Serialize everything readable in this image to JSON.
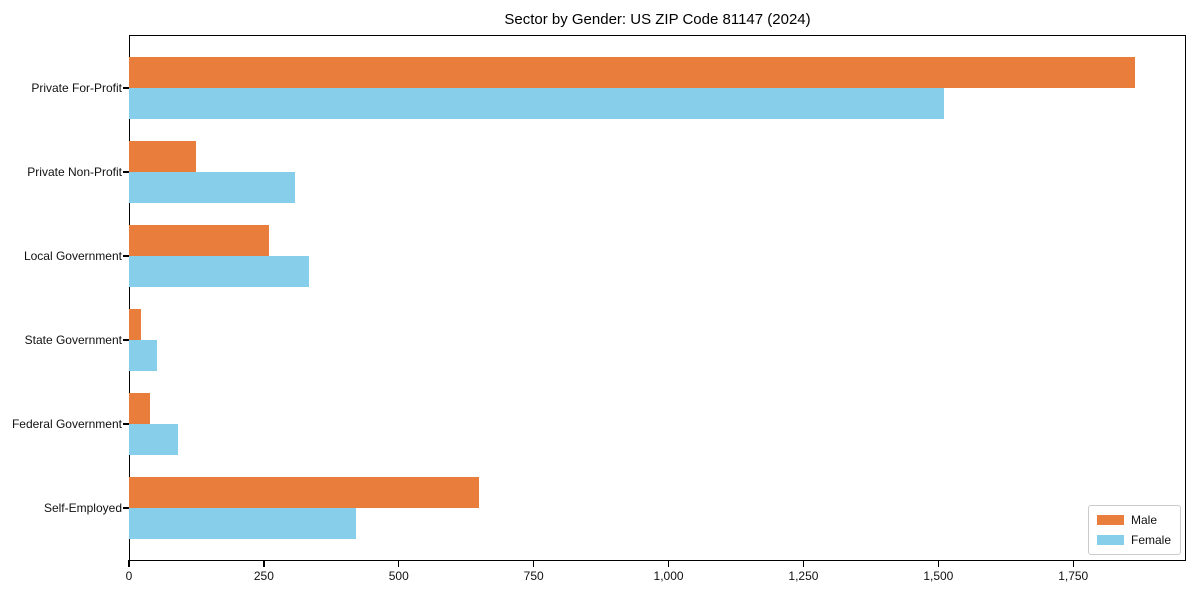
{
  "title": "Sector by Gender: US ZIP Code 81147 (2024)",
  "colors": {
    "male": "#e87d3c",
    "female": "#87ceeb",
    "axis": "#000000",
    "text": "#111111",
    "legend_border": "#cccccc",
    "background": "#ffffff"
  },
  "chart_data": {
    "type": "bar",
    "orientation": "horizontal",
    "title": "Sector by Gender: US ZIP Code 81147 (2024)",
    "categories": [
      "Private For-Profit",
      "Private Non-Profit",
      "Local Government",
      "State Government",
      "Federal Government",
      "Self-Employed"
    ],
    "series": [
      {
        "name": "Male",
        "color": "#e87d3c",
        "values": [
          1865,
          124,
          260,
          23,
          39,
          648
        ]
      },
      {
        "name": "Female",
        "color": "#87ceeb",
        "values": [
          1510,
          307,
          333,
          52,
          91,
          420
        ]
      }
    ],
    "xlabel": "",
    "ylabel": "",
    "xlim": [
      0,
      1959
    ],
    "xticks": [
      0,
      250,
      500,
      750,
      1000,
      1250,
      1500,
      1750
    ],
    "xtick_labels": [
      "0",
      "250",
      "500",
      "750",
      "1,000",
      "1,250",
      "1,500",
      "1,750"
    ],
    "grid": false,
    "legend_position": "lower right"
  }
}
